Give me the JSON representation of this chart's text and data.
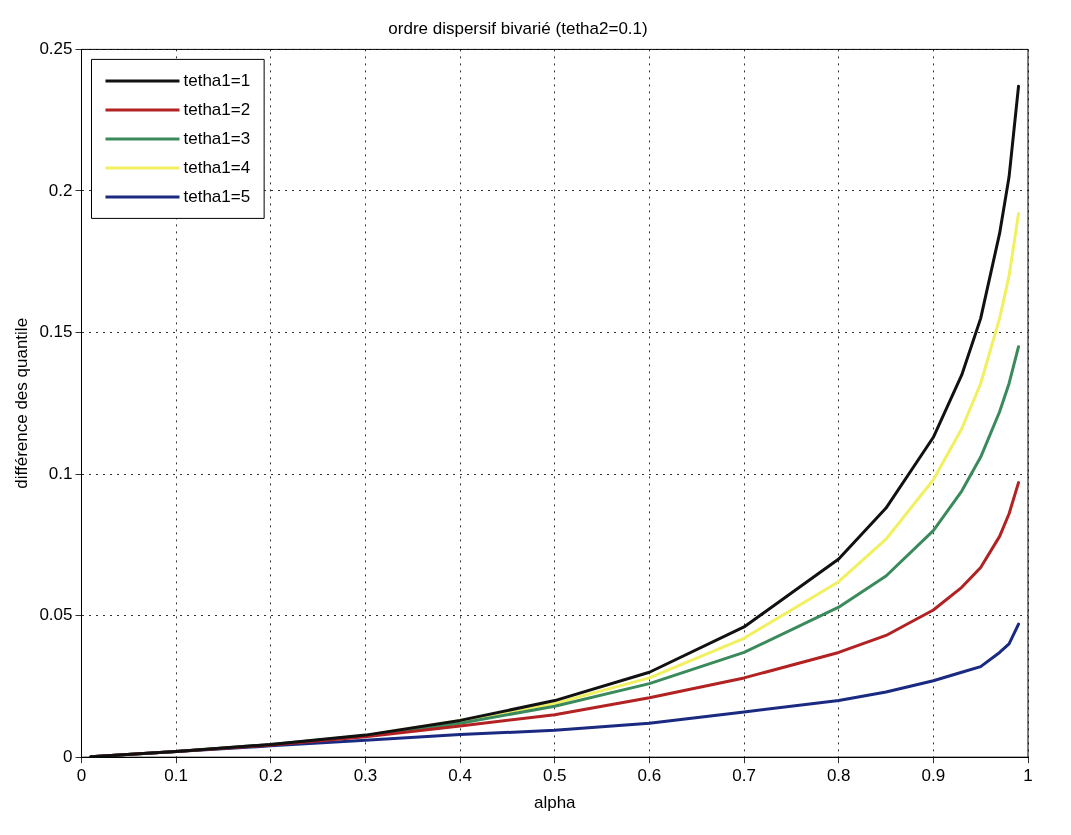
{
  "chart_data": {
    "type": "line",
    "title": "ordre dispersif bivarié (tetha2=0.1)",
    "xlabel": "alpha",
    "ylabel": "différence des quantile",
    "x": [
      0.01,
      0.1,
      0.2,
      0.3,
      0.4,
      0.5,
      0.6,
      0.7,
      0.8,
      0.85,
      0.9,
      0.93,
      0.95,
      0.97,
      0.98,
      0.99
    ],
    "series": [
      {
        "name": "tetha1=1",
        "color": "#111111",
        "values": [
          0.0002,
          0.002,
          0.0045,
          0.0078,
          0.013,
          0.02,
          0.03,
          0.046,
          0.07,
          0.088,
          0.113,
          0.135,
          0.155,
          0.185,
          0.205,
          0.237
        ]
      },
      {
        "name": "tetha1=2",
        "color": "#b22222",
        "values": [
          0.0002,
          0.002,
          0.0043,
          0.0072,
          0.011,
          0.015,
          0.021,
          0.028,
          0.037,
          0.043,
          0.052,
          0.06,
          0.067,
          0.078,
          0.086,
          0.097
        ]
      },
      {
        "name": "tetha1=3",
        "color": "#3a8a5c",
        "values": [
          0.0002,
          0.002,
          0.0045,
          0.0076,
          0.012,
          0.018,
          0.026,
          0.037,
          0.053,
          0.064,
          0.08,
          0.094,
          0.106,
          0.122,
          0.132,
          0.145
        ]
      },
      {
        "name": "tetha1=4",
        "color": "#f0f060",
        "values": [
          null,
          null,
          null,
          0.0077,
          0.013,
          0.019,
          0.028,
          0.042,
          0.062,
          0.077,
          0.098,
          0.116,
          0.132,
          0.155,
          0.17,
          0.192
        ]
      },
      {
        "name": "tetha1=5",
        "color": "#1a2a80",
        "values": [
          0.0002,
          0.002,
          0.004,
          0.006,
          0.008,
          0.0095,
          0.012,
          0.016,
          0.02,
          0.023,
          0.027,
          0.03,
          0.032,
          0.037,
          0.04,
          0.047
        ]
      }
    ],
    "xlim": [
      0,
      1
    ],
    "ylim": [
      0,
      0.25
    ],
    "xticks": [
      0,
      0.1,
      0.2,
      0.3,
      0.4,
      0.5,
      0.6,
      0.7,
      0.8,
      0.9,
      1
    ],
    "yticks": [
      0,
      0.05,
      0.1,
      0.15,
      0.2,
      0.25
    ],
    "grid": true,
    "legend": "top left",
    "marker": "none",
    "line_style": "solid"
  }
}
